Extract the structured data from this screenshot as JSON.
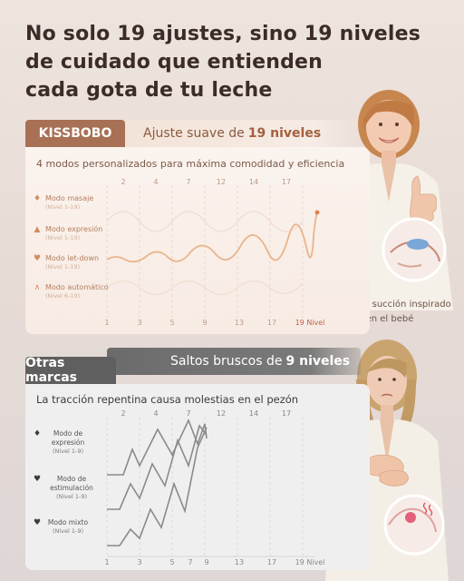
{
  "headline": {
    "line1": "No solo 19 ajustes, sino 19 niveles",
    "line2": "de cuidado que entienden",
    "line3": "cada gota de tu leche"
  },
  "kissbobo": {
    "tag": "KISSBOBO",
    "subtitle_prefix": "Ajuste suave de",
    "subtitle_bold": "19 niveles",
    "description": "4 modos personalizados para máxima comodidad y eficiencia",
    "legend": [
      {
        "name": "Modo masaje",
        "sub": "(Nivel 1-19)",
        "icon": "drop-icon"
      },
      {
        "name": "Modo expresión",
        "sub": "(Nivel 1-19)",
        "icon": "triangle-icon"
      },
      {
        "name": "Modo let-down",
        "sub": "(Nivel 1-19)",
        "icon": "heart-icon"
      },
      {
        "name": "Modo automático",
        "sub": "(Nivel 6-19)",
        "icon": "chevron-up-icon"
      }
    ],
    "top_ticks": [
      "2",
      "4",
      "7",
      "12",
      "14",
      "17"
    ],
    "bottom_ticks": [
      "1",
      "3",
      "5",
      "9",
      "13",
      "17",
      "19 Nivel"
    ],
    "callout": "Ritmo de succión inspirado en el bebé",
    "accent": "#a87054"
  },
  "otras": {
    "tag": "Otras marcas",
    "subtitle_prefix": "Saltos bruscos de",
    "subtitle_bold": "9 niveles",
    "description": "La tracción repentina causa molestias en el pezón",
    "legend": [
      {
        "name": "Modo de expresión",
        "sub": "(Nivel 1-9)",
        "icon": "drop-icon"
      },
      {
        "name": "Modo de estimulación",
        "sub": "(Nivel 1-9)",
        "icon": "heart-icon"
      },
      {
        "name": "Modo mixto",
        "sub": "(Nivel 1-9)",
        "icon": "mixed-icon"
      }
    ],
    "top_ticks": [
      "2",
      "4",
      "7",
      "12",
      "14",
      "17"
    ],
    "bottom_ticks": [
      "1",
      "3",
      "5",
      "7",
      "9",
      "13",
      "17",
      "19 Nivel"
    ],
    "accent": "#5f5f5f"
  },
  "chart_data": [
    {
      "type": "line",
      "x": [
        1,
        3,
        5,
        9,
        13,
        17,
        19
      ],
      "series": [
        {
          "name": "Modo expresión",
          "values": [
            1,
            2,
            3,
            4,
            6,
            9,
            19
          ]
        }
      ]
    },
    {
      "type": "line",
      "x": [
        1,
        3,
        5,
        7,
        9
      ],
      "series": [
        {
          "name": "Modo de expresión",
          "values": [
            2,
            4,
            7,
            5,
            9
          ]
        },
        {
          "name": "Modo de estimulación",
          "values": [
            1,
            3,
            2,
            7,
            9
          ]
        },
        {
          "name": "Modo mixto",
          "values": [
            1,
            2,
            4,
            3,
            9
          ]
        }
      ]
    }
  ]
}
